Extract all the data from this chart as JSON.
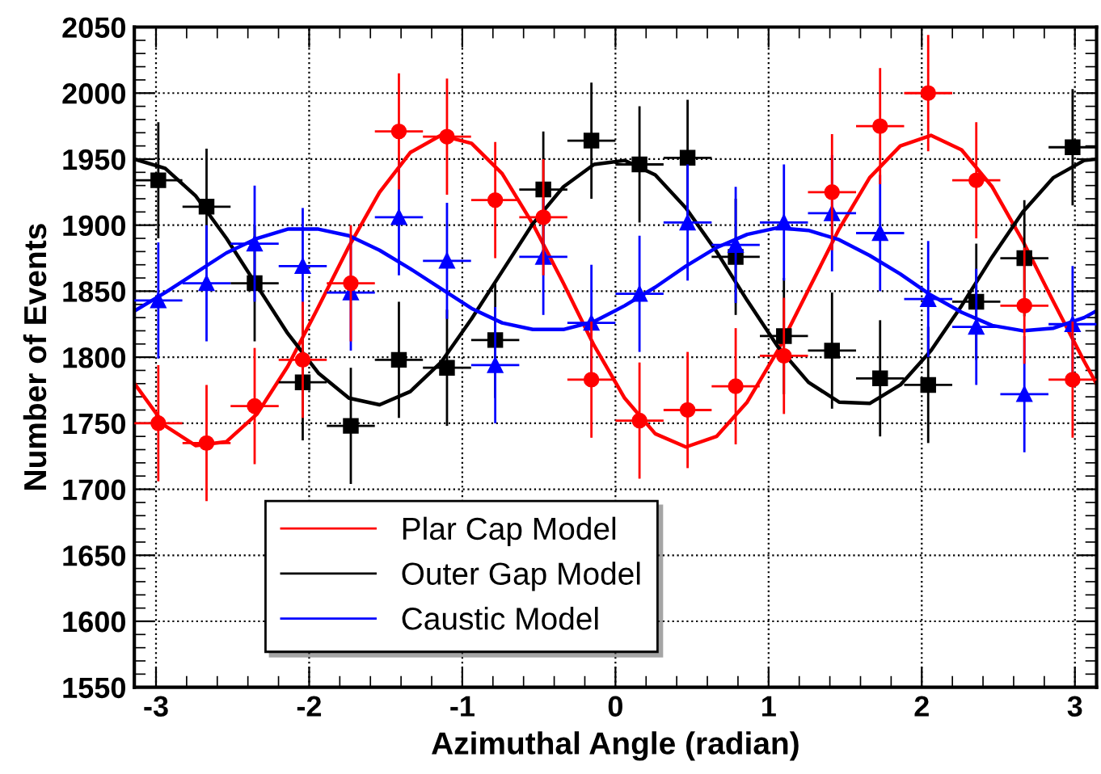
{
  "chart_data": {
    "type": "scatter",
    "xlabel": "Azimuthal Angle (radian)",
    "ylabel": "Number of Events",
    "xlim": [
      -3.1416,
      3.1416
    ],
    "xticks": [
      -3,
      -2,
      -1,
      0,
      1,
      2,
      3
    ],
    "ylim": [
      1550,
      2050
    ],
    "yticks": [
      1550,
      1600,
      1650,
      1700,
      1750,
      1800,
      1850,
      1900,
      1950,
      2000,
      2050
    ],
    "grid": true,
    "legend": "bottom left",
    "series": [
      {
        "color": "#ff0000",
        "marker": "circle",
        "x": [
          -2.985,
          -2.67,
          -2.356,
          -2.042,
          -1.728,
          -1.414,
          -1.1,
          -0.785,
          -0.471,
          -0.157,
          0.157,
          0.471,
          0.785,
          1.1,
          1.414,
          1.728,
          2.042,
          2.356,
          2.67,
          2.985
        ],
        "values": [
          1750,
          1735,
          1763,
          1798,
          1856,
          1971,
          1967,
          1919,
          1906,
          1783,
          1752,
          1760,
          1778,
          1801,
          1925,
          1975,
          2000,
          1934,
          1839,
          1783
        ],
        "errors": [
          44,
          44,
          44,
          44,
          44,
          44,
          44,
          44,
          44,
          44,
          44,
          44,
          44,
          44,
          44,
          44,
          44,
          44,
          44,
          44
        ],
        "xerrors": [
          0.157,
          0.157,
          0.157,
          0.157,
          0.157,
          0.157,
          0.157,
          0.157,
          0.157,
          0.157,
          0.157,
          0.157,
          0.157,
          0.157,
          0.157,
          0.157,
          0.157,
          0.157,
          0.157,
          0.157
        ]
      },
      {
        "color": "#000000",
        "marker": "square",
        "x": [
          -2.985,
          -2.67,
          -2.356,
          -2.042,
          -1.728,
          -1.414,
          -1.1,
          -0.785,
          -0.471,
          -0.157,
          0.157,
          0.471,
          0.785,
          1.1,
          1.414,
          1.728,
          2.042,
          2.356,
          2.67,
          2.985
        ],
        "values": [
          1934,
          1914,
          1856,
          1781,
          1748,
          1798,
          1792,
          1813,
          1927,
          1964,
          1946,
          1951,
          1876,
          1816,
          1805,
          1784,
          1779,
          1842,
          1875,
          1959
        ],
        "errors": [
          44,
          44,
          44,
          44,
          44,
          44,
          44,
          44,
          44,
          44,
          44,
          44,
          44,
          44,
          44,
          44,
          44,
          44,
          44,
          44
        ],
        "xerrors": [
          0.157,
          0.157,
          0.157,
          0.157,
          0.157,
          0.157,
          0.157,
          0.157,
          0.157,
          0.157,
          0.157,
          0.157,
          0.157,
          0.157,
          0.157,
          0.157,
          0.157,
          0.157,
          0.157,
          0.157
        ]
      },
      {
        "color": "#0000ff",
        "marker": "triangle",
        "x": [
          -2.985,
          -2.67,
          -2.356,
          -2.042,
          -1.728,
          -1.414,
          -1.1,
          -0.785,
          -0.471,
          -0.157,
          0.157,
          0.471,
          0.785,
          1.1,
          1.414,
          1.728,
          2.042,
          2.356,
          2.67,
          2.985
        ],
        "values": [
          1843,
          1856,
          1886,
          1869,
          1849,
          1906,
          1873,
          1794,
          1876,
          1826,
          1848,
          1902,
          1885,
          1902,
          1909,
          1894,
          1844,
          1823,
          1772,
          1825
        ],
        "errors": [
          44,
          44,
          44,
          44,
          44,
          44,
          44,
          44,
          44,
          44,
          44,
          44,
          44,
          44,
          44,
          44,
          44,
          44,
          44,
          44
        ],
        "xerrors": [
          0.157,
          0.157,
          0.157,
          0.157,
          0.157,
          0.157,
          0.157,
          0.157,
          0.157,
          0.157,
          0.157,
          0.157,
          0.157,
          0.157,
          0.157,
          0.157,
          0.157,
          0.157,
          0.157,
          0.157
        ]
      },
      {
        "type": "line",
        "name": "Plar Cap Model",
        "color": "#ff0000",
        "marker": "none",
        "x": [
          -3.14,
          -2.94,
          -2.74,
          -2.54,
          -2.34,
          -2.14,
          -1.94,
          -1.74,
          -1.54,
          -1.34,
          -1.14,
          -0.94,
          -0.74,
          -0.54,
          -0.34,
          -0.14,
          0.06,
          0.26,
          0.46,
          0.66,
          0.86,
          1.06,
          1.26,
          1.46,
          1.66,
          1.86,
          2.06,
          2.26,
          2.46,
          2.66,
          2.86,
          3.06,
          3.14
        ],
        "values": [
          1780,
          1748,
          1733,
          1736,
          1757,
          1793,
          1838,
          1884,
          1925,
          1955,
          1968,
          1962,
          1939,
          1901,
          1856,
          1809,
          1769,
          1742,
          1732,
          1740,
          1766,
          1805,
          1851,
          1897,
          1936,
          1960,
          1968,
          1957,
          1929,
          1888,
          1842,
          1797,
          1780
        ]
      },
      {
        "type": "line",
        "name": "Outer Gap Model",
        "color": "#000000",
        "marker": "none",
        "x": [
          -3.14,
          -2.94,
          -2.74,
          -2.54,
          -2.34,
          -2.14,
          -1.94,
          -1.74,
          -1.54,
          -1.34,
          -1.14,
          -0.94,
          -0.74,
          -0.54,
          -0.34,
          -0.14,
          0.06,
          0.26,
          0.46,
          0.66,
          0.86,
          1.06,
          1.26,
          1.46,
          1.66,
          1.86,
          2.06,
          2.26,
          2.46,
          2.66,
          2.86,
          3.06,
          3.14
        ],
        "values": [
          1950,
          1943,
          1922,
          1890,
          1854,
          1818,
          1788,
          1769,
          1764,
          1774,
          1796,
          1829,
          1865,
          1901,
          1929,
          1946,
          1949,
          1938,
          1913,
          1880,
          1843,
          1808,
          1781,
          1766,
          1765,
          1779,
          1805,
          1839,
          1876,
          1910,
          1936,
          1949,
          1950
        ]
      },
      {
        "type": "line",
        "name": "Caustic Model",
        "color": "#0000ff",
        "marker": "none",
        "x": [
          -3.14,
          -2.94,
          -2.74,
          -2.54,
          -2.34,
          -2.14,
          -1.94,
          -1.74,
          -1.54,
          -1.34,
          -1.14,
          -0.94,
          -0.74,
          -0.54,
          -0.34,
          -0.14,
          0.06,
          0.26,
          0.46,
          0.66,
          0.86,
          1.06,
          1.26,
          1.46,
          1.66,
          1.86,
          2.06,
          2.26,
          2.46,
          2.66,
          2.86,
          3.06,
          3.14
        ],
        "values": [
          1835,
          1849,
          1864,
          1879,
          1890,
          1897,
          1897,
          1892,
          1881,
          1867,
          1852,
          1837,
          1826,
          1821,
          1821,
          1827,
          1839,
          1853,
          1869,
          1883,
          1893,
          1898,
          1896,
          1889,
          1877,
          1863,
          1847,
          1834,
          1824,
          1820,
          1822,
          1830,
          1835
        ]
      }
    ]
  }
}
